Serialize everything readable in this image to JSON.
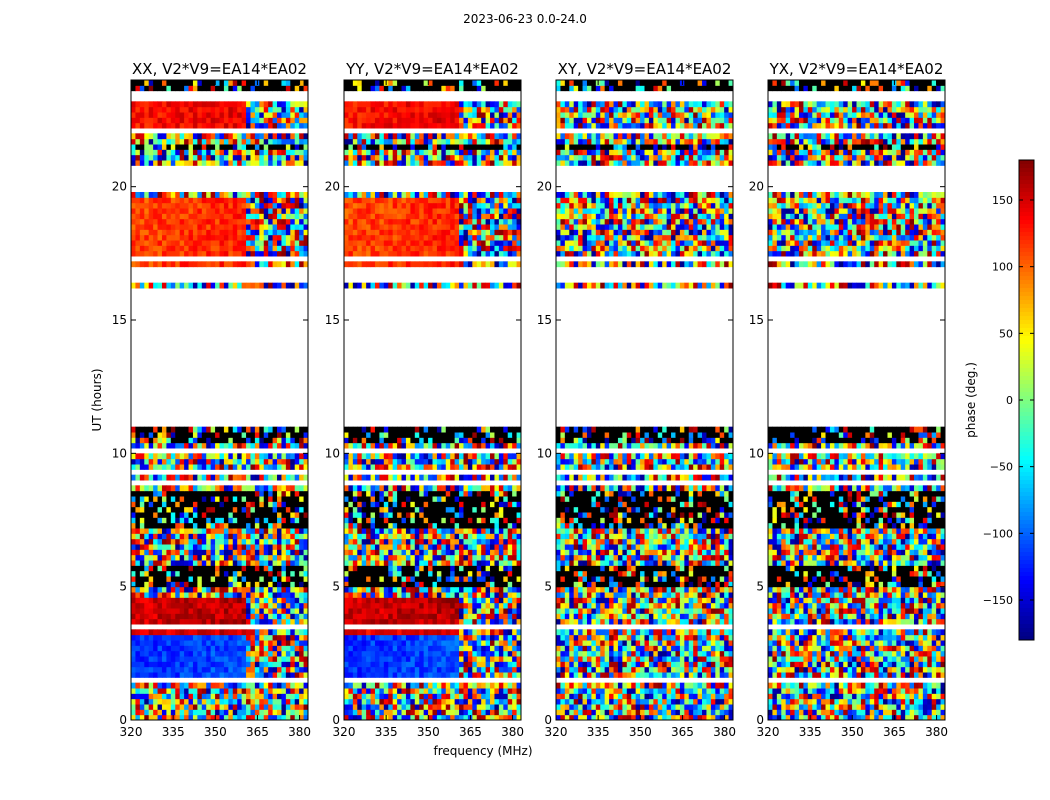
{
  "figure": {
    "suptitle": "2023-06-23 0.0-24.0"
  },
  "chart_data": {
    "type": "heatmap",
    "ylabel": "UT (hours)",
    "xlabel": "frequency (MHz)",
    "xlim": [
      320,
      383
    ],
    "ylim": [
      0,
      24
    ],
    "xticks": [
      320,
      335,
      350,
      365,
      380
    ],
    "yticks": [
      0,
      5,
      10,
      15,
      20
    ],
    "colorbar": {
      "label": "phase (deg.)",
      "range": [
        -180,
        180
      ],
      "ticks": [
        150,
        100,
        50,
        0,
        -50,
        -100,
        -150
      ],
      "tick_labels": [
        "150",
        "100",
        "50",
        "0",
        "−50",
        "−100",
        "−150"
      ],
      "colormap": "jet"
    },
    "panels": [
      {
        "title": "XX, V2*V9=EA14*EA02",
        "mode": "parallel"
      },
      {
        "title": "YY, V2*V9=EA14*EA02",
        "mode": "parallel"
      },
      {
        "title": "XY, V2*V9=EA14*EA02",
        "mode": "cross"
      },
      {
        "title": "YX, V2*V9=EA14*EA02",
        "mode": "cross"
      }
    ],
    "flagged_ranges_hours": [
      [
        11.1,
        16.2
      ],
      [
        16.35,
        17.0
      ],
      [
        19.8,
        20.85
      ],
      [
        21.95,
        22.1
      ],
      [
        23.2,
        23.5
      ],
      [
        17.2,
        17.3
      ],
      [
        10.1,
        10.2
      ],
      [
        9.3,
        9.4
      ],
      [
        8.8,
        8.9
      ],
      [
        7.05,
        7.1
      ],
      [
        5.95,
        6.1
      ],
      [
        4.55,
        4.6
      ],
      [
        3.5,
        3.6
      ],
      [
        1.45,
        1.55
      ],
      [
        1.15,
        1.2
      ],
      [
        0.35,
        0.38
      ]
    ],
    "dark_bands_hours": [
      [
        23.5,
        24.0
      ],
      [
        21.45,
        21.7
      ],
      [
        20.95,
        21.05
      ],
      [
        10.4,
        11.1
      ],
      [
        7.2,
        8.6
      ],
      [
        5.1,
        5.7
      ]
    ],
    "smooth_phase_regions": [
      {
        "panels": [
          "XX",
          "YY"
        ],
        "t_range": [
          1.6,
          3.5
        ],
        "phase_deg": -120
      },
      {
        "panels": [
          "XX",
          "YY"
        ],
        "t_range": [
          3.3,
          3.55
        ],
        "phase_deg": 140
      },
      {
        "panels": [
          "XX",
          "YY"
        ],
        "t_range": [
          22.0,
          23.2
        ],
        "phase_deg": 130
      },
      {
        "panels": [
          "XX",
          "YY"
        ],
        "t_range": [
          17.1,
          19.5
        ],
        "phase_deg": 110
      },
      {
        "panels": [
          "XX",
          "YY"
        ],
        "t_range": [
          3.6,
          4.5
        ],
        "phase_deg": 150
      }
    ]
  }
}
